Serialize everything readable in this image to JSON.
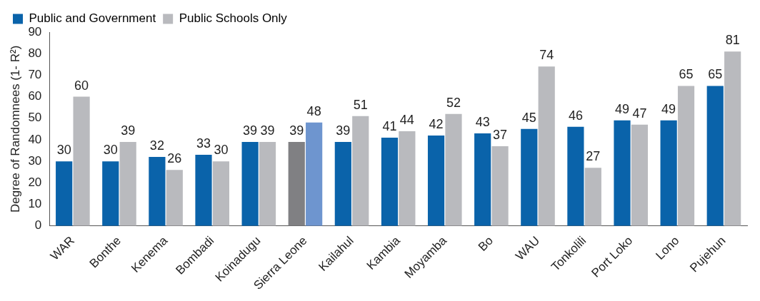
{
  "chart_data": {
    "type": "bar",
    "ylabel": "Degree of Randomnees (1- R²)",
    "categories": [
      "WAR",
      "Bonthe",
      "Kenema",
      "Bombadi",
      "Koinadugu",
      "Sierra Leone",
      "Kailahul",
      "Kambia",
      "Moyamba",
      "Bo",
      "WAU",
      "Tonkolili",
      "Port Loko",
      "Lono",
      "Pujehun"
    ],
    "series": [
      {
        "name": "Public and Government",
        "color": "#0a63aa",
        "colors": [
          "#0a63aa",
          "#0a63aa",
          "#0a63aa",
          "#0a63aa",
          "#0a63aa",
          "#808083",
          "#0a63aa",
          "#0a63aa",
          "#0a63aa",
          "#0a63aa",
          "#0a63aa",
          "#0a63aa",
          "#0a63aa",
          "#0a63aa",
          "#0a63aa"
        ],
        "values": [
          30,
          30,
          32,
          33,
          39,
          39,
          39,
          41,
          42,
          43,
          45,
          46,
          49,
          49,
          65
        ]
      },
      {
        "name": "Public Schools Only",
        "color": "#b9babe",
        "colors": [
          "#b9babe",
          "#b9babe",
          "#b9babe",
          "#b9babe",
          "#b9babe",
          "#6e95cf",
          "#b9babe",
          "#b9babe",
          "#b9babe",
          "#b9babe",
          "#b9babe",
          "#b9babe",
          "#b9babe",
          "#b9babe",
          "#b9babe"
        ],
        "values": [
          60,
          39,
          26,
          30,
          39,
          48,
          51,
          44,
          52,
          37,
          74,
          27,
          47,
          65,
          81
        ]
      }
    ],
    "ylim": [
      0,
      90
    ],
    "yticks": [
      0,
      10,
      20,
      30,
      40,
      50,
      60,
      70,
      80,
      90
    ],
    "grid": false,
    "legend": "top left",
    "data_labels": true
  }
}
